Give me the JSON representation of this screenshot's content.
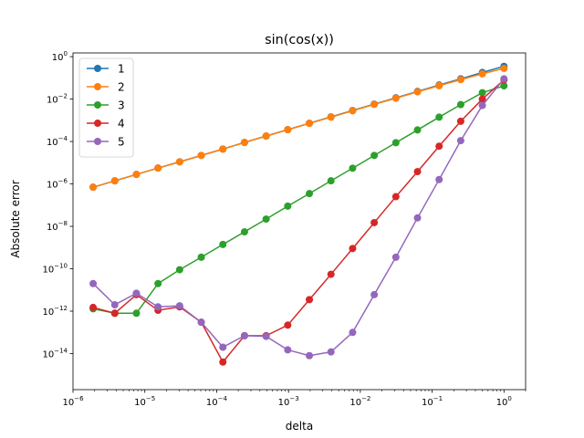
{
  "chart_data": {
    "type": "line",
    "title": "sin(cos(x))",
    "xlabel": "delta",
    "ylabel": "Absolute error",
    "xscale": "log",
    "yscale": "log",
    "xlim": [
      1e-06,
      2
    ],
    "ylim": [
      2e-16,
      1.5
    ],
    "grid": false,
    "legend_position": "top-left",
    "x_ticks": [
      {
        "value": 1e-06,
        "base": "10",
        "exp": "−6"
      },
      {
        "value": 1e-05,
        "base": "10",
        "exp": "−5"
      },
      {
        "value": 0.0001,
        "base": "10",
        "exp": "−4"
      },
      {
        "value": 0.001,
        "base": "10",
        "exp": "−3"
      },
      {
        "value": 0.01,
        "base": "10",
        "exp": "−2"
      },
      {
        "value": 0.1,
        "base": "10",
        "exp": "−1"
      },
      {
        "value": 1,
        "base": "10",
        "exp": "0"
      }
    ],
    "y_ticks": [
      {
        "value": 1e-14,
        "base": "10",
        "exp": "−14"
      },
      {
        "value": 1e-12,
        "base": "10",
        "exp": "−12"
      },
      {
        "value": 1e-10,
        "base": "10",
        "exp": "−10"
      },
      {
        "value": 1e-08,
        "base": "10",
        "exp": "−8"
      },
      {
        "value": 1e-06,
        "base": "10",
        "exp": "−6"
      },
      {
        "value": 0.0001,
        "base": "10",
        "exp": "−4"
      },
      {
        "value": 0.01,
        "base": "10",
        "exp": "−2"
      },
      {
        "value": 1,
        "base": "10",
        "exp": "0"
      }
    ],
    "x": [
      1.9073e-06,
      3.8147e-06,
      7.6294e-06,
      1.5259e-05,
      3.0518e-05,
      6.1035e-05,
      0.00012207,
      0.00024414,
      0.00048828,
      0.00097656,
      0.0019531,
      0.0039063,
      0.0078125,
      0.015625,
      0.03125,
      0.0625,
      0.125,
      0.25,
      0.5,
      1
    ],
    "series": [
      {
        "name": "1",
        "color": "#1f77b4",
        "values": [
          7e-07,
          1.4e-06,
          2.8e-06,
          5.6e-06,
          1.1e-05,
          2.2e-05,
          4.4e-05,
          9e-05,
          0.00018,
          0.00036,
          0.00072,
          0.00145,
          0.0029,
          0.0058,
          0.0115,
          0.023,
          0.046,
          0.09,
          0.18,
          0.35
        ]
      },
      {
        "name": "2",
        "color": "#ff7f0e",
        "values": [
          7e-07,
          1.4e-06,
          2.8e-06,
          5.6e-06,
          1.1e-05,
          2.2e-05,
          4.4e-05,
          9e-05,
          0.00018,
          0.00036,
          0.00072,
          0.0014,
          0.0028,
          0.0056,
          0.011,
          0.022,
          0.043,
          0.083,
          0.155,
          0.28
        ]
      },
      {
        "name": "3",
        "color": "#2ca02c",
        "values": [
          1.3e-12,
          8e-13,
          8e-13,
          2e-11,
          9e-11,
          3.5e-10,
          1.4e-09,
          5.5e-09,
          2.2e-08,
          9e-08,
          3.5e-07,
          1.4e-06,
          5.5e-06,
          2.2e-05,
          8.8e-05,
          0.00035,
          0.0014,
          0.0055,
          0.02,
          0.042
        ]
      },
      {
        "name": "4",
        "color": "#d62728",
        "values": [
          1.5e-12,
          8e-13,
          6e-12,
          1.1e-12,
          1.6e-12,
          3e-13,
          4e-15,
          7e-14,
          7e-14,
          2.2e-13,
          3.5e-12,
          5.5e-11,
          9e-10,
          1.5e-08,
          2.5e-07,
          3.8e-06,
          6e-05,
          0.0009,
          0.01,
          0.08
        ]
      },
      {
        "name": "5",
        "color": "#9467bd",
        "values": [
          2e-11,
          2e-12,
          7e-12,
          1.6e-12,
          1.8e-12,
          3e-13,
          2e-14,
          7e-14,
          6.5e-14,
          1.5e-14,
          8e-15,
          1.2e-14,
          1e-13,
          6e-12,
          3.5e-10,
          2.5e-08,
          1.6e-06,
          0.00011,
          0.005,
          0.09
        ]
      }
    ]
  }
}
